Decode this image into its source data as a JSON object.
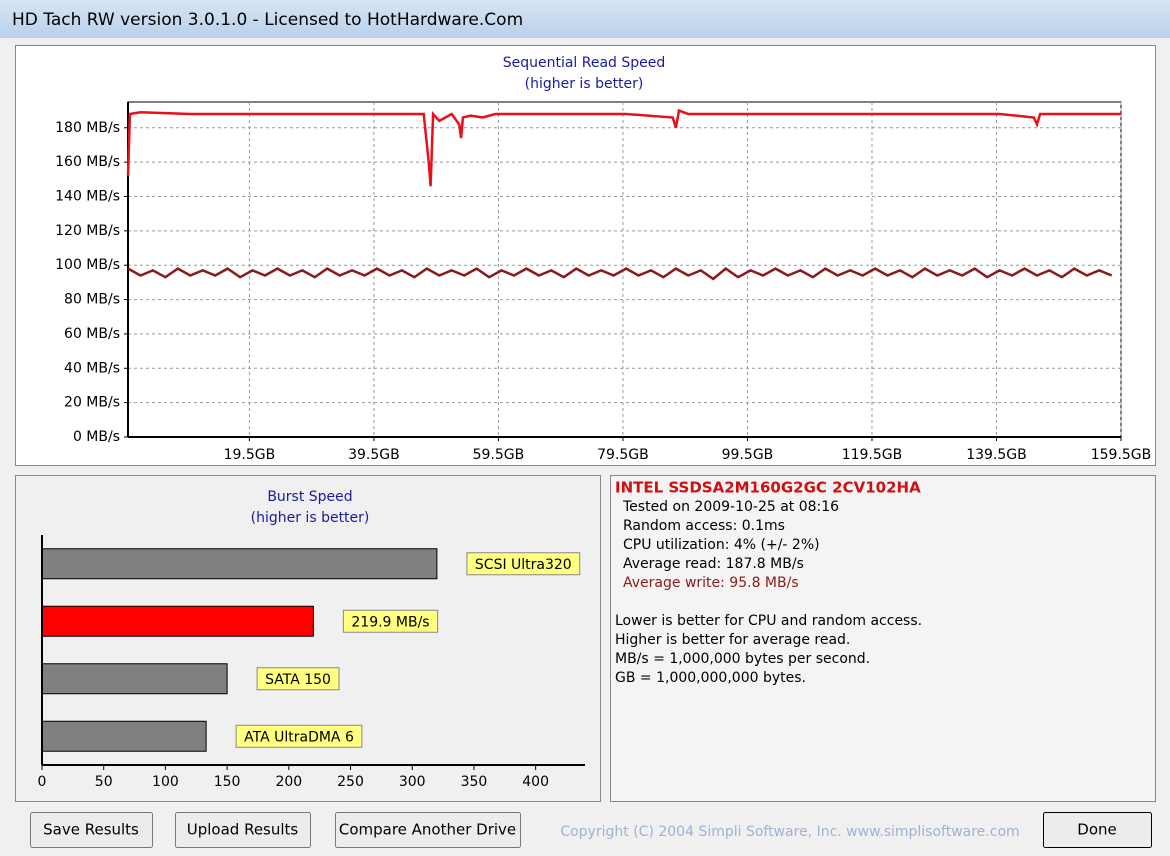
{
  "window": {
    "title": "HD Tach RW version 3.0.1.0 - Licensed to HotHardware.Com"
  },
  "chart_data": [
    {
      "type": "line",
      "title": "Sequential Read Speed",
      "subtitle": "(higher is better)",
      "series": [
        {
          "color": "#e8101a",
          "x": [
            0,
            0.3,
            2,
            10,
            20,
            30,
            40,
            47.5,
            48.3,
            48.6,
            49,
            50,
            52,
            53.2,
            53.5,
            53.8,
            55,
            57,
            59,
            61,
            70,
            80,
            87.5,
            88,
            88.5,
            90,
            100,
            110,
            120,
            130,
            140,
            145.5,
            146,
            146.5,
            150,
            159.5
          ],
          "values": [
            152,
            188,
            189,
            188,
            188,
            188,
            188,
            188,
            160,
            146,
            188,
            184,
            188,
            182,
            174,
            186,
            187,
            186,
            188,
            188,
            188,
            188,
            186,
            180,
            190,
            188,
            188,
            188,
            188,
            188,
            188,
            186,
            182,
            188,
            188,
            188
          ]
        },
        {
          "color": "#8b1a1a",
          "x": [
            0,
            2,
            4,
            6,
            8,
            10,
            12,
            14,
            16,
            18,
            20,
            22,
            24,
            26,
            28,
            30,
            32,
            34,
            36,
            38,
            40,
            42,
            44,
            46,
            48,
            50,
            52,
            54,
            56,
            58,
            60,
            62,
            64,
            66,
            68,
            70,
            72,
            74,
            76,
            78,
            80,
            82,
            84,
            86,
            88,
            90,
            92,
            94,
            96,
            98,
            100,
            102,
            104,
            106,
            108,
            110,
            112,
            114,
            116,
            118,
            120,
            122,
            124,
            126,
            128,
            130,
            132,
            134,
            136,
            138,
            140,
            142,
            144,
            146,
            148,
            150,
            152,
            154,
            156,
            158
          ],
          "values": [
            98,
            94,
            97,
            93,
            98,
            94,
            97,
            94,
            98,
            93,
            97,
            94,
            98,
            94,
            97,
            93,
            98,
            94,
            97,
            94,
            98,
            94,
            97,
            93,
            98,
            94,
            97,
            94,
            98,
            93,
            97,
            94,
            98,
            94,
            97,
            93,
            98,
            94,
            97,
            94,
            98,
            94,
            97,
            93,
            98,
            94,
            97,
            92,
            98,
            93,
            97,
            94,
            98,
            94,
            97,
            93,
            98,
            94,
            97,
            94,
            98,
            94,
            97,
            93,
            98,
            94,
            97,
            94,
            98,
            93,
            97,
            94,
            98,
            94,
            97,
            93,
            98,
            94,
            97,
            94
          ]
        }
      ],
      "xlim": [
        0,
        159.5
      ],
      "xticks": [
        {
          "value": 19.5,
          "label": "19.5GB"
        },
        {
          "value": 39.5,
          "label": "39.5GB"
        },
        {
          "value": 59.5,
          "label": "59.5GB"
        },
        {
          "value": 79.5,
          "label": "79.5GB"
        },
        {
          "value": 99.5,
          "label": "99.5GB"
        },
        {
          "value": 119.5,
          "label": "119.5GB"
        },
        {
          "value": 139.5,
          "label": "139.5GB"
        },
        {
          "value": 159.5,
          "label": "159.5GB"
        }
      ],
      "ylim": [
        0,
        195
      ],
      "yticks": [
        {
          "value": 0,
          "label": "0 MB/s"
        },
        {
          "value": 20,
          "label": "20 MB/s"
        },
        {
          "value": 40,
          "label": "40 MB/s"
        },
        {
          "value": 60,
          "label": "60 MB/s"
        },
        {
          "value": 80,
          "label": "80 MB/s"
        },
        {
          "value": 100,
          "label": "100 MB/s"
        },
        {
          "value": 120,
          "label": "120 MB/s"
        },
        {
          "value": 140,
          "label": "140 MB/s"
        },
        {
          "value": 160,
          "label": "160 MB/s"
        },
        {
          "value": 180,
          "label": "180 MB/s"
        }
      ],
      "grid": true
    },
    {
      "type": "hbar",
      "title": "Burst Speed",
      "subtitle": "(higher is better)",
      "categories": [
        "SCSI Ultra320",
        null,
        "SATA 150",
        "ATA UltraDMA 6"
      ],
      "values": [
        320,
        219.9,
        150,
        133
      ],
      "value_labels": [
        null,
        "219.9 MB/s",
        null,
        null
      ],
      "colors": [
        "#808080",
        "#ff0000",
        "#808080",
        "#808080"
      ],
      "xlim": [
        0,
        440
      ],
      "xticks": [
        0,
        50,
        100,
        150,
        200,
        250,
        300,
        350,
        400
      ]
    }
  ],
  "info": {
    "drive": "INTEL SSDSA2M160G2GC 2CV102HA",
    "details": [
      "Tested on 2009-10-25 at 08:16",
      "Random access: 0.1ms",
      "CPU utilization: 4% (+/- 2%)",
      "Average read: 187.8 MB/s",
      "Average write: 95.8 MB/s"
    ],
    "notes": [
      "Lower is better for CPU and random access.",
      "Higher is better for average read.",
      "MB/s = 1,000,000 bytes per second.",
      "GB = 1,000,000,000 bytes."
    ]
  },
  "buttons": [
    "Save Results",
    "Upload Results",
    "Compare Another Drive",
    "Done"
  ],
  "copyright": "Copyright (C) 2004 Simpli Software, Inc. www.simplisoftware.com"
}
